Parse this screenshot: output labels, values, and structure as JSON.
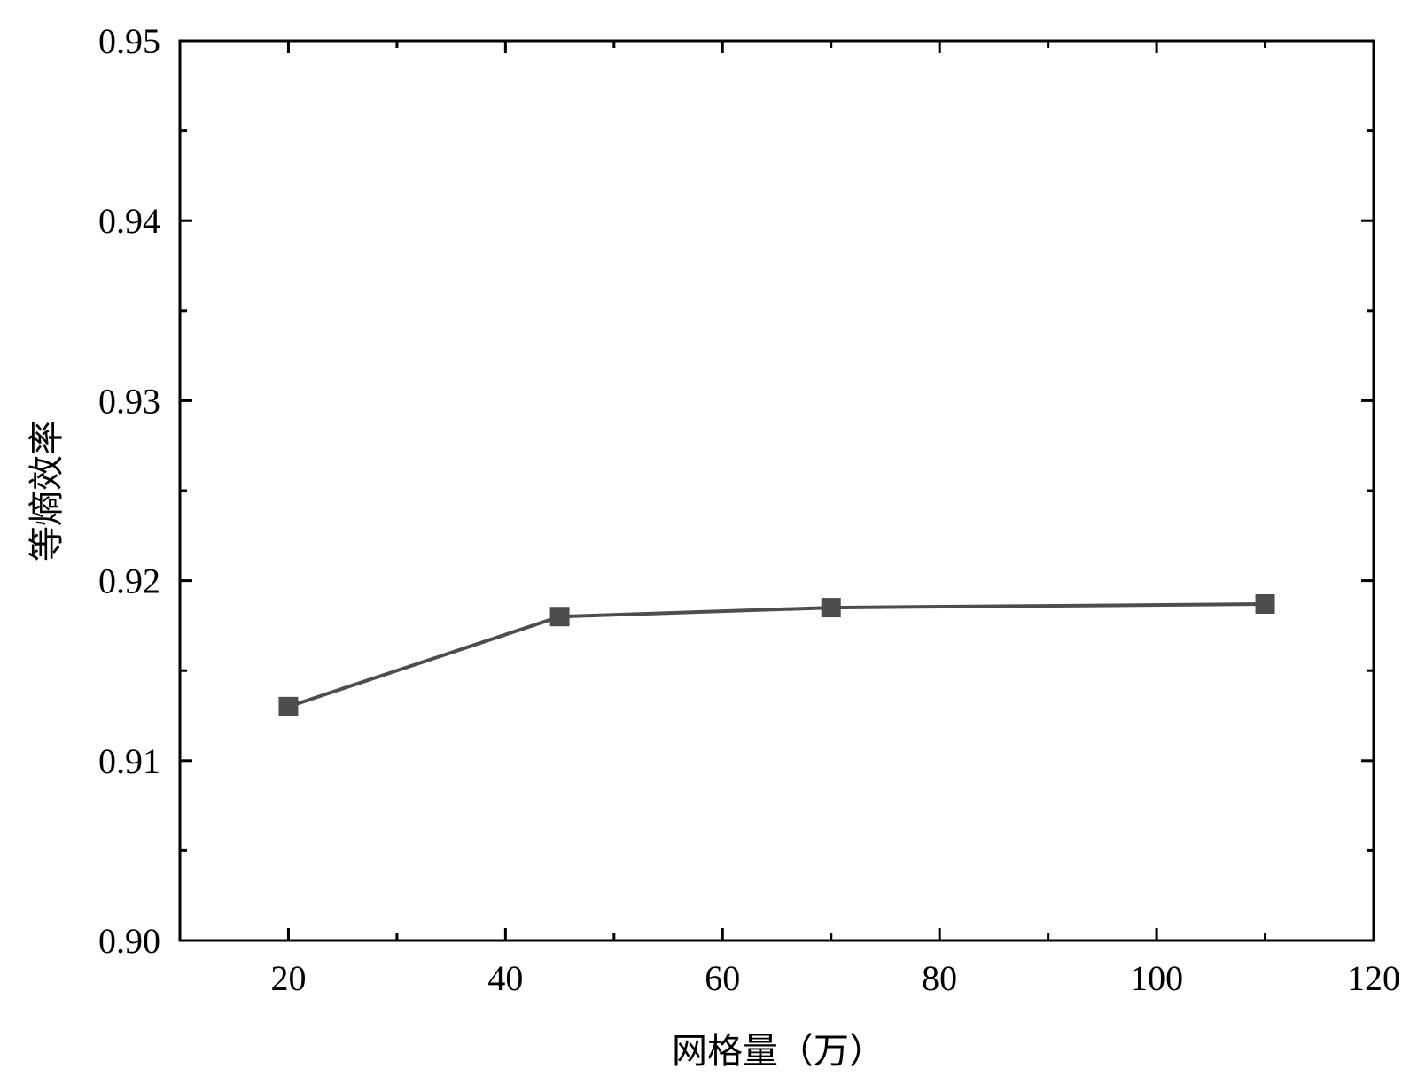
{
  "chart_data": {
    "type": "line",
    "x_label": "网格量（万）",
    "y_label": "等熵效率",
    "x": [
      20,
      45,
      70,
      110
    ],
    "series": [
      {
        "name": "等熵效率",
        "color": "#4d4d4d",
        "values": [
          0.913,
          0.918,
          0.9185,
          0.9187
        ]
      }
    ],
    "xlim": [
      10,
      120
    ],
    "xticks": [
      20,
      40,
      60,
      80,
      100,
      120
    ],
    "xticks_minor": [
      30,
      50,
      70,
      90,
      110
    ],
    "ylim": [
      0.9,
      0.95
    ],
    "yticks": [
      {
        "value": 0.9,
        "label": "0.90"
      },
      0.91,
      0.92,
      0.93,
      0.94,
      0.95
    ],
    "yticks_minor": [
      0.905,
      0.915,
      0.925,
      0.935,
      0.945
    ],
    "marker": "square",
    "grid": false
  }
}
